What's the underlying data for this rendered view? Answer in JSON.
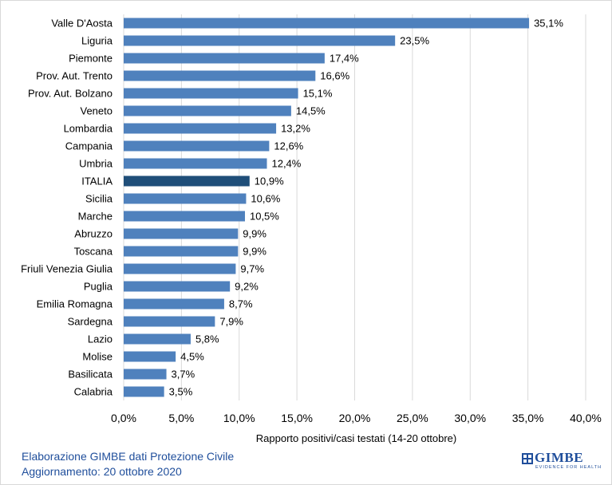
{
  "chart_data": {
    "type": "bar",
    "orientation": "horizontal",
    "categories": [
      "Valle D'Aosta",
      "Liguria",
      "Piemonte",
      "Prov. Aut. Trento",
      "Prov. Aut. Bolzano",
      "Veneto",
      "Lombardia",
      "Campania",
      "Umbria",
      "ITALIA",
      "Sicilia",
      "Marche",
      "Abruzzo",
      "Toscana",
      "Friuli Venezia Giulia",
      "Puglia",
      "Emilia Romagna",
      "Sardegna",
      "Lazio",
      "Molise",
      "Basilicata",
      "Calabria"
    ],
    "values": [
      35.1,
      23.5,
      17.4,
      16.6,
      15.1,
      14.5,
      13.2,
      12.6,
      12.4,
      10.9,
      10.6,
      10.5,
      9.9,
      9.9,
      9.7,
      9.2,
      8.7,
      7.9,
      5.8,
      4.5,
      3.7,
      3.5
    ],
    "value_labels": [
      "35,1%",
      "23,5%",
      "17,4%",
      "16,6%",
      "15,1%",
      "14,5%",
      "13,2%",
      "12,6%",
      "12,4%",
      "10,9%",
      "10,6%",
      "10,5%",
      "9,9%",
      "9,9%",
      "9,7%",
      "9,2%",
      "8,7%",
      "7,9%",
      "5,8%",
      "4,5%",
      "3,7%",
      "3,5%"
    ],
    "highlight_category": "ITALIA",
    "xlim": [
      0,
      40
    ],
    "ticks": [
      0,
      5,
      10,
      15,
      20,
      25,
      30,
      35,
      40
    ],
    "tick_labels": [
      "0,0%",
      "5,0%",
      "10,0%",
      "15,0%",
      "20,0%",
      "25,0%",
      "30,0%",
      "35,0%",
      "40,0%"
    ],
    "xlabel": "Rapporto positivi/casi testati (14-20 ottobre)",
    "ylabel": "",
    "title": "",
    "grid": true,
    "colors": {
      "bar": "#4f81bd",
      "highlight": "#1f4e79",
      "grid": "#d9d9d9"
    }
  },
  "footer": {
    "line1": "Elaborazione GIMBE dati Protezione Civile",
    "line2": "Aggiornamento: 20 ottobre 2020"
  },
  "logo": {
    "name": "GIMBE",
    "tagline": "EVIDENCE FOR HEALTH",
    "color": "#1f4e9b"
  }
}
